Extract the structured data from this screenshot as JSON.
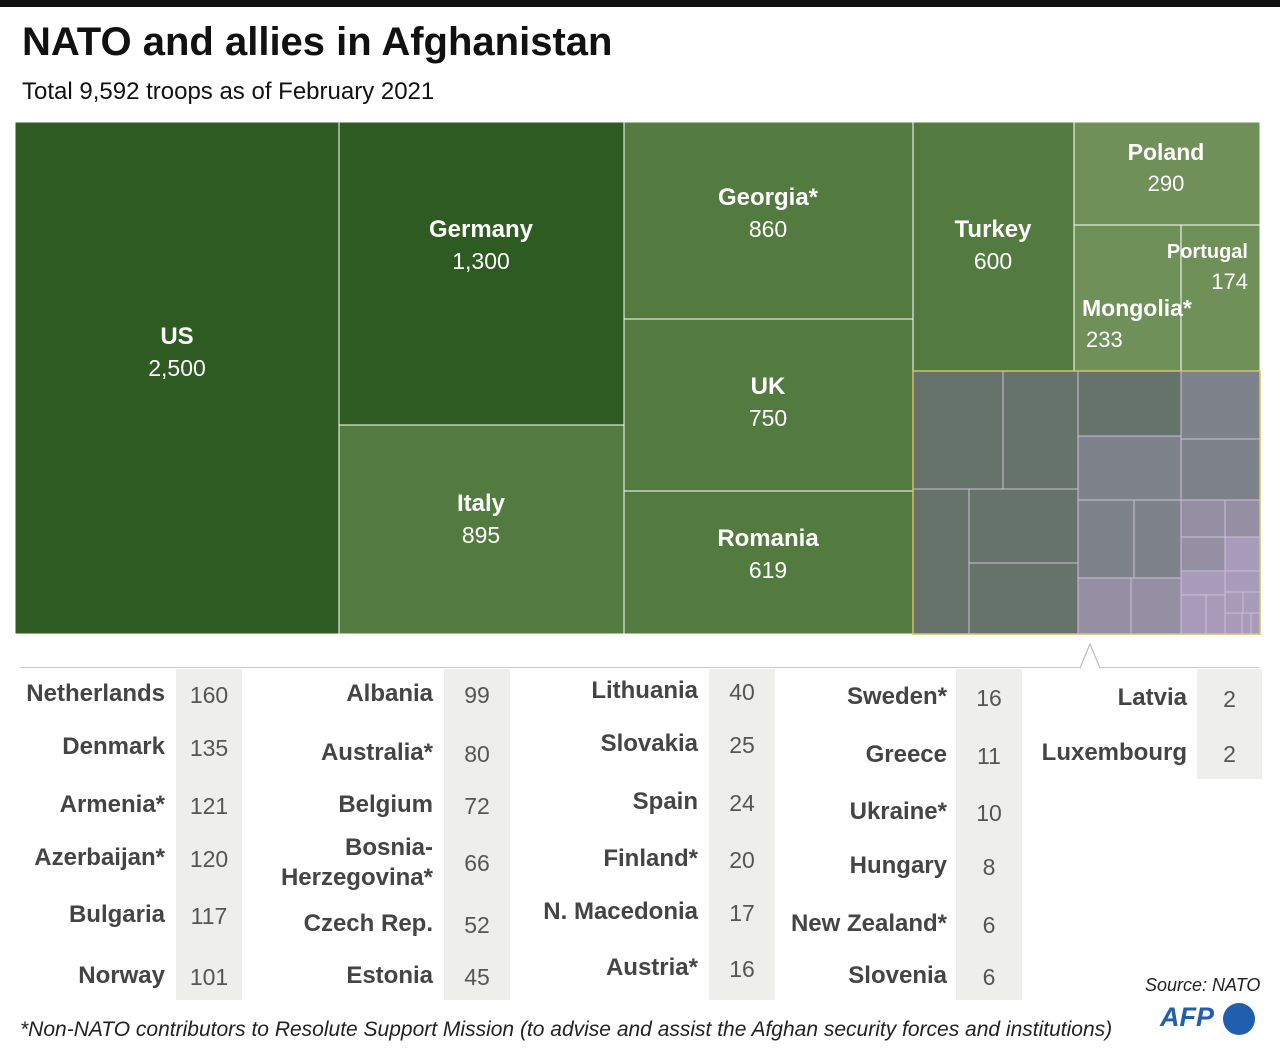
{
  "header": {
    "title": "NATO and allies in Afghanistan",
    "subtitle": "Total 9,592 troops as of February 2021"
  },
  "chart_data": {
    "type": "treemap",
    "title": "NATO and allies in Afghanistan",
    "subtitle": "Total 9,592 troops as of February 2021",
    "total": 9592,
    "labeled_items": [
      {
        "name": "US",
        "value": 2500,
        "value_label": "2,500"
      },
      {
        "name": "Germany",
        "value": 1300,
        "value_label": "1,300"
      },
      {
        "name": "Italy",
        "value": 895,
        "value_label": "895"
      },
      {
        "name": "Georgia*",
        "value": 860,
        "value_label": "860"
      },
      {
        "name": "UK",
        "value": 750,
        "value_label": "750"
      },
      {
        "name": "Romania",
        "value": 619,
        "value_label": "619"
      },
      {
        "name": "Turkey",
        "value": 600,
        "value_label": "600"
      },
      {
        "name": "Poland",
        "value": 290,
        "value_label": "290"
      },
      {
        "name": "Mongolia*",
        "value": 233,
        "value_label": "233"
      },
      {
        "name": "Portugal",
        "value": 174,
        "value_label": "174"
      }
    ],
    "small_items": [
      {
        "name": "Netherlands",
        "value": 160,
        "value_label": "160"
      },
      {
        "name": "Denmark",
        "value": 135,
        "value_label": "135"
      },
      {
        "name": "Armenia*",
        "value": 121,
        "value_label": "121"
      },
      {
        "name": "Azerbaijan*",
        "value": 120,
        "value_label": "120"
      },
      {
        "name": "Bulgaria",
        "value": 117,
        "value_label": "117"
      },
      {
        "name": "Norway",
        "value": 101,
        "value_label": "101"
      },
      {
        "name": "Albania",
        "value": 99,
        "value_label": "99"
      },
      {
        "name": "Australia*",
        "value": 80,
        "value_label": "80"
      },
      {
        "name": "Belgium",
        "value": 72,
        "value_label": "72"
      },
      {
        "name": "Bosnia-Herzegovina*",
        "lines": [
          "Bosnia-",
          "Herzegovina*"
        ],
        "value": 66,
        "value_label": "66"
      },
      {
        "name": "Czech Rep.",
        "value": 52,
        "value_label": "52"
      },
      {
        "name": "Estonia",
        "value": 45,
        "value_label": "45"
      },
      {
        "name": "Lithuania",
        "value": 40,
        "value_label": "40"
      },
      {
        "name": "Slovakia",
        "value": 25,
        "value_label": "25"
      },
      {
        "name": "Spain",
        "value": 24,
        "value_label": "24"
      },
      {
        "name": "Finland*",
        "value": 20,
        "value_label": "20"
      },
      {
        "name": "N. Macedonia",
        "value": 17,
        "value_label": "17"
      },
      {
        "name": "Austria*",
        "value": 16,
        "value_label": "16"
      },
      {
        "name": "Sweden*",
        "value": 16,
        "value_label": "16"
      },
      {
        "name": "Greece",
        "value": 11,
        "value_label": "11"
      },
      {
        "name": "Ukraine*",
        "value": 10,
        "value_label": "10"
      },
      {
        "name": "Hungary",
        "value": 8,
        "value_label": "8"
      },
      {
        "name": "New Zealand*",
        "value": 6,
        "value_label": "6"
      },
      {
        "name": "Slovenia",
        "value": 6,
        "value_label": "6"
      },
      {
        "name": "Latvia",
        "value": 2,
        "value_label": "2"
      },
      {
        "name": "Luxembourg",
        "value": 2,
        "value_label": "2"
      }
    ],
    "table_columns": [
      6,
      6,
      6,
      6,
      2
    ],
    "colors": {
      "dark_green": "#2e5b22",
      "mid_green": "#537b40",
      "light_green": "#6f9058",
      "grey_green": "#66736b",
      "grey": "#7e838b",
      "mauve": "#958fa3",
      "lavender": "#a99cba",
      "highlight_border": "#d9c06a"
    }
  },
  "footer": {
    "source": "Source: NATO",
    "footnote": "*Non-NATO contributors to Resolute Support Mission (to advise and assist the Afghan security forces and institutions)",
    "logo_text": "AFP"
  }
}
